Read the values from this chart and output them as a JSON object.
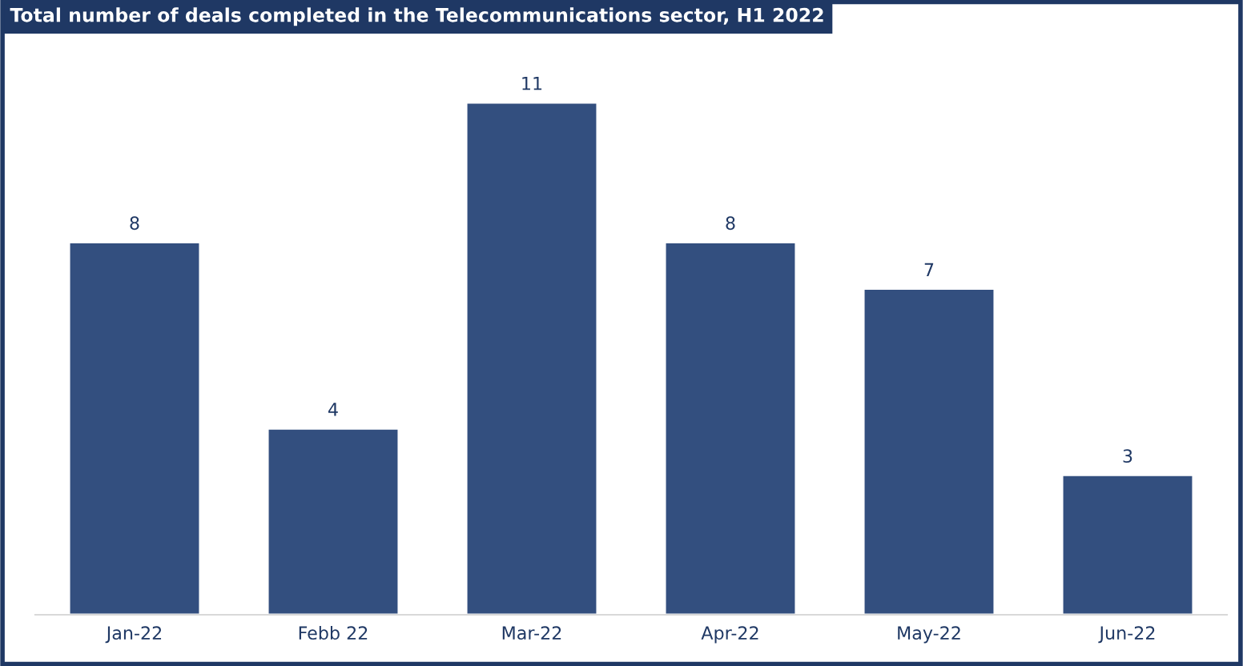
{
  "chart_data": {
    "type": "bar",
    "title": "Total number of deals completed in the Telecommunications sector, H1 2022",
    "categories": [
      "Jan-22",
      "Febb 22",
      "Mar-22",
      "Apr-22",
      "May-22",
      "Jun-22"
    ],
    "values": [
      8,
      4,
      11,
      8,
      7,
      3
    ],
    "color": "#334f7f",
    "data_labels": true,
    "grid": false,
    "legend": false
  }
}
